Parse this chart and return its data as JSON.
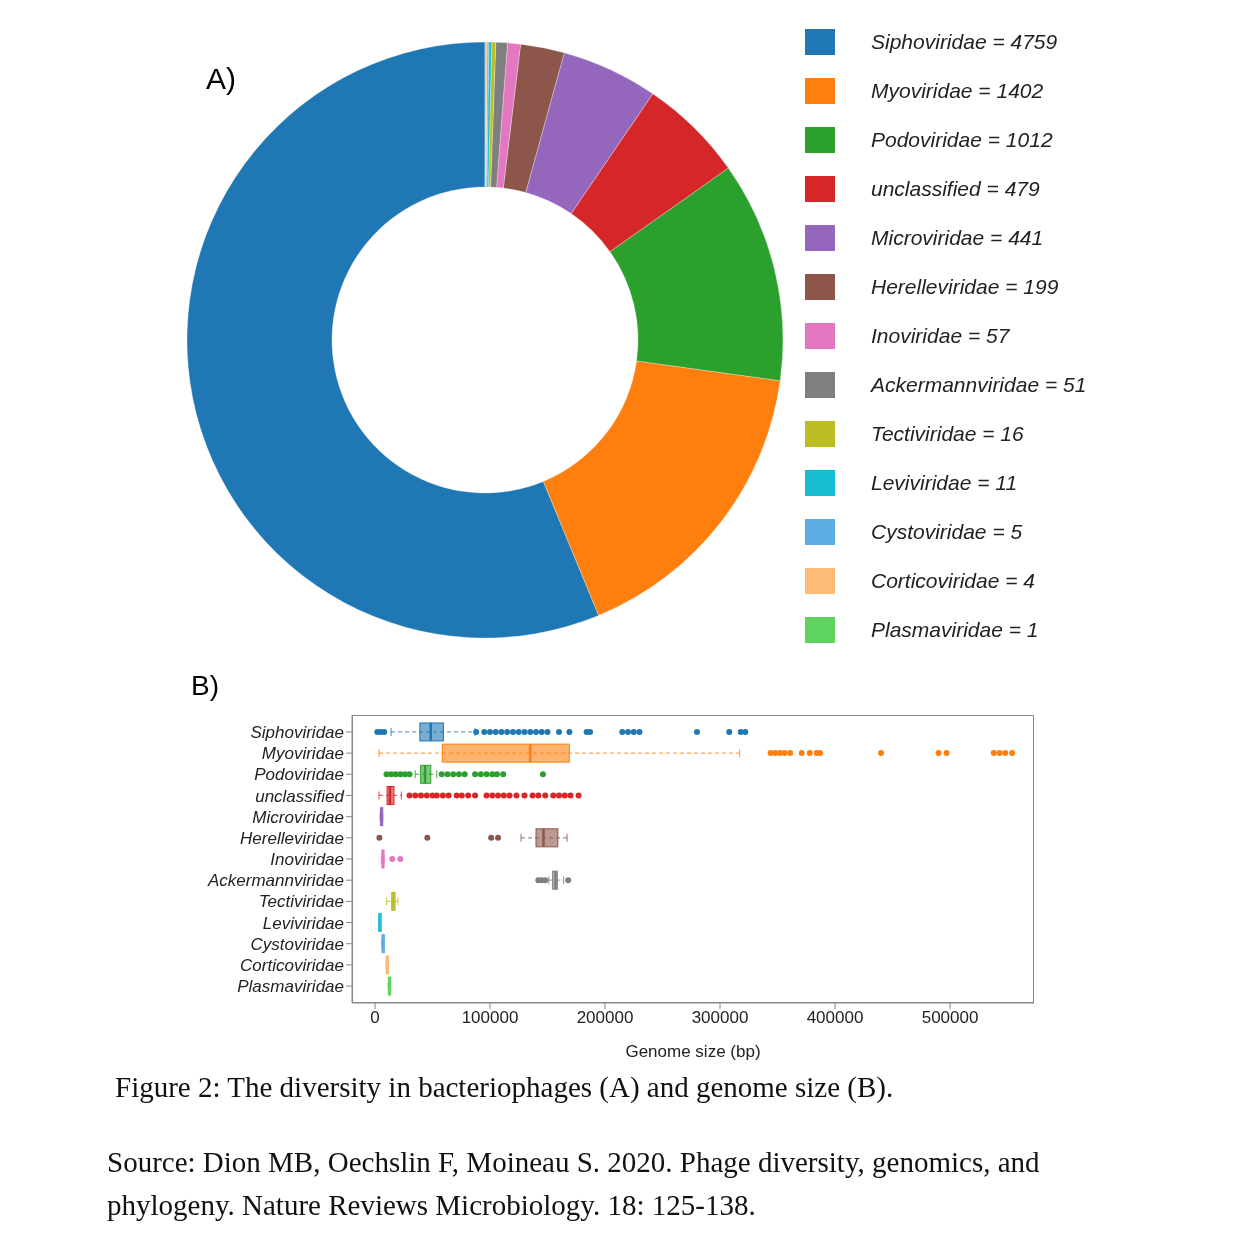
{
  "chart_data": [
    {
      "type": "donut",
      "title": "A)",
      "legend": "right",
      "categories": [
        "Siphoviridae = 4759",
        "Myoviridae = 1402",
        "Podoviridae = 1012",
        "unclassified = 479",
        "Microviridae = 441",
        "Herelleviridae = 199",
        "Inoviridae = 57",
        "Ackermannviridae = 51",
        "Tectiviridae = 16",
        "Leviviridae = 11",
        "Cystoviridae = 5",
        "Corticoviridae = 4",
        "Plasmaviridae = 1"
      ],
      "values": [
        4759,
        1402,
        1012,
        479,
        441,
        199,
        57,
        51,
        16,
        11,
        5,
        4,
        1
      ],
      "colors": [
        "#1f77b4",
        "#ff7f0e",
        "#2ca02c",
        "#d62728",
        "#9467bd",
        "#8c564b",
        "#e377c2",
        "#7f7f7f",
        "#bcbd22",
        "#17becf",
        "#5dade2",
        "#ffbb78",
        "#5fd35f"
      ]
    },
    {
      "type": "box",
      "title": "B)",
      "orientation": "horizontal",
      "xlabel": "Genome size (bp)",
      "xlim": [
        -20000,
        573000
      ],
      "xticks": [
        0,
        100000,
        200000,
        300000,
        400000,
        500000
      ],
      "categories": [
        "Siphoviridae",
        "Myoviridae",
        "Podoviridae",
        "unclassified",
        "Microviridae",
        "Herelleviridae",
        "Inoviridae",
        "Ackermannviridae",
        "Tectiviridae",
        "Leviviridae",
        "Cystoviridae",
        "Corticoviridae",
        "Plasmaviridae"
      ],
      "colors": [
        "#1f77b4",
        "#ff7f0e",
        "#2ca02c",
        "#d62728",
        "#9467bd",
        "#8c564b",
        "#e377c2",
        "#7f7f7f",
        "#bcbd22",
        "#17becf",
        "#5dade2",
        "#ffbb78",
        "#5fd35f"
      ],
      "boxes": [
        {
          "low": 14000,
          "q1": 39000,
          "median": 48500,
          "q3": 59500,
          "high": 87000,
          "outliers": [
            2000,
            5000,
            8000,
            88000,
            95000,
            100000,
            105000,
            110000,
            115000,
            120000,
            125000,
            130000,
            135000,
            140000,
            145000,
            150000,
            160000,
            169000,
            184000,
            187000,
            215000,
            220000,
            225000,
            230000,
            280000,
            308000,
            318000,
            322000
          ]
        },
        {
          "low": 3500,
          "q1": 58500,
          "median": 135000,
          "q3": 169000,
          "high": 317000,
          "outliers": [
            344000,
            348000,
            352000,
            356000,
            361000,
            371000,
            378000,
            384000,
            387000,
            440000,
            490000,
            497000,
            538000,
            543000,
            548000,
            554000
          ]
        },
        {
          "low": 35000,
          "q1": 39700,
          "median": 43500,
          "q3": 48500,
          "high": 53700,
          "outliers": [
            10000,
            14000,
            18000,
            22000,
            26000,
            30000,
            58000,
            63000,
            68000,
            73000,
            78000,
            87000,
            92000,
            97000,
            102000,
            106000,
            111500,
            146000
          ]
        },
        {
          "low": 3500,
          "q1": 10500,
          "median": 13000,
          "q3": 16500,
          "high": 23000,
          "outliers": [
            30000,
            35000,
            40000,
            45000,
            50000,
            53700,
            59000,
            64000,
            71000,
            75500,
            81000,
            87000,
            97000,
            102000,
            107000,
            112000,
            117000,
            123000,
            130000,
            137000,
            142000,
            148000,
            155000,
            160000,
            165000,
            170000,
            177000
          ]
        },
        {
          "low": 4400,
          "q1": 5000,
          "median": 5400,
          "q3": 5800,
          "high": 6700
        },
        {
          "low": 127000,
          "q1": 140000,
          "median": 146500,
          "q3": 159000,
          "high": 167000,
          "outliers": [
            3800,
            45500,
            101000,
            107000
          ]
        },
        {
          "low": 5500,
          "q1": 6000,
          "median": 7000,
          "q3": 7500,
          "high": 8000,
          "outliers": [
            15000,
            22000
          ]
        },
        {
          "low": 151000,
          "q1": 154500,
          "median": 157000,
          "q3": 158500,
          "high": 164000,
          "outliers": [
            142000,
            145000,
            148000,
            168000
          ]
        },
        {
          "low": 10000,
          "q1": 14500,
          "median": 16000,
          "q3": 17500,
          "high": 20000
        },
        {
          "low": 3500,
          "q1": 3700,
          "median": 3800,
          "q3": 3900,
          "high": 4000
        },
        {
          "low": 6000,
          "q1": 6400,
          "median": 6700,
          "q3": 7000,
          "high": 7300
        },
        {
          "low": 9500,
          "q1": 10000,
          "median": 10300,
          "q3": 10600,
          "high": 11000
        },
        {
          "low": 11500,
          "q1": 12000,
          "median": 12300,
          "q3": 12600,
          "high": 13000
        }
      ],
      "annotations": [
        "Figure 2: The diversity in bacteriophages  (A) and genome size (B).",
        "Source: Dion MB, Oechslin F, Moineau S. 2020. Phage diversity, genomics, and phylogeny. Nature Reviews Microbiology. 18: 125-138."
      ]
    }
  ]
}
